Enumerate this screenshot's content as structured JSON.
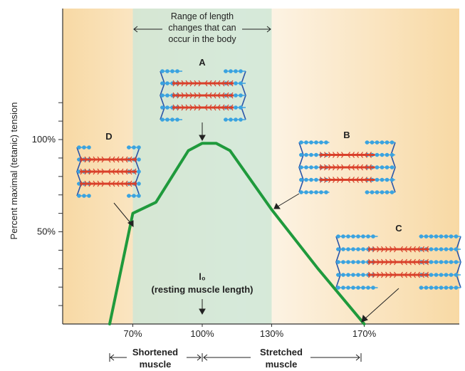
{
  "chart_data": {
    "type": "line",
    "title": "",
    "xlabel": "",
    "ylabel": "Percent maximal (tetanic) tension",
    "x_ticks": [
      "70%",
      "100%",
      "130%",
      "170%"
    ],
    "y_ticks": [
      "50%",
      "100%"
    ],
    "xlim": [
      40,
      210
    ],
    "ylim": [
      0,
      120
    ],
    "series": [
      {
        "name": "",
        "x": [
          60,
          70,
          80,
          88,
          94,
          100,
          106,
          112,
          130,
          150,
          170
        ],
        "y": [
          0,
          60,
          66,
          82,
          94,
          98,
          98,
          94,
          62,
          30,
          0
        ]
      }
    ],
    "shaded_region": {
      "x_start": 70,
      "x_end": 130
    },
    "annotations": {
      "range_text": [
        "Range of length",
        "changes that can",
        "occur in the body"
      ],
      "l0_text": "l₀",
      "resting_text": "(resting muscle length)",
      "shortened_text": [
        "Shortened",
        "muscle"
      ],
      "stretched_text": [
        "Stretched",
        "muscle"
      ]
    },
    "sarcomere_labels": [
      "A",
      "B",
      "C",
      "D"
    ],
    "colors": {
      "curve": "#1f9a3c",
      "band": "#cfe6d6",
      "background_center": "#fdf7ee",
      "background_edge": "#f8d9a4",
      "thick_filament": "#d9402a",
      "thin_filament": "#3aa3e0",
      "z_line": "#2b55a8"
    }
  }
}
